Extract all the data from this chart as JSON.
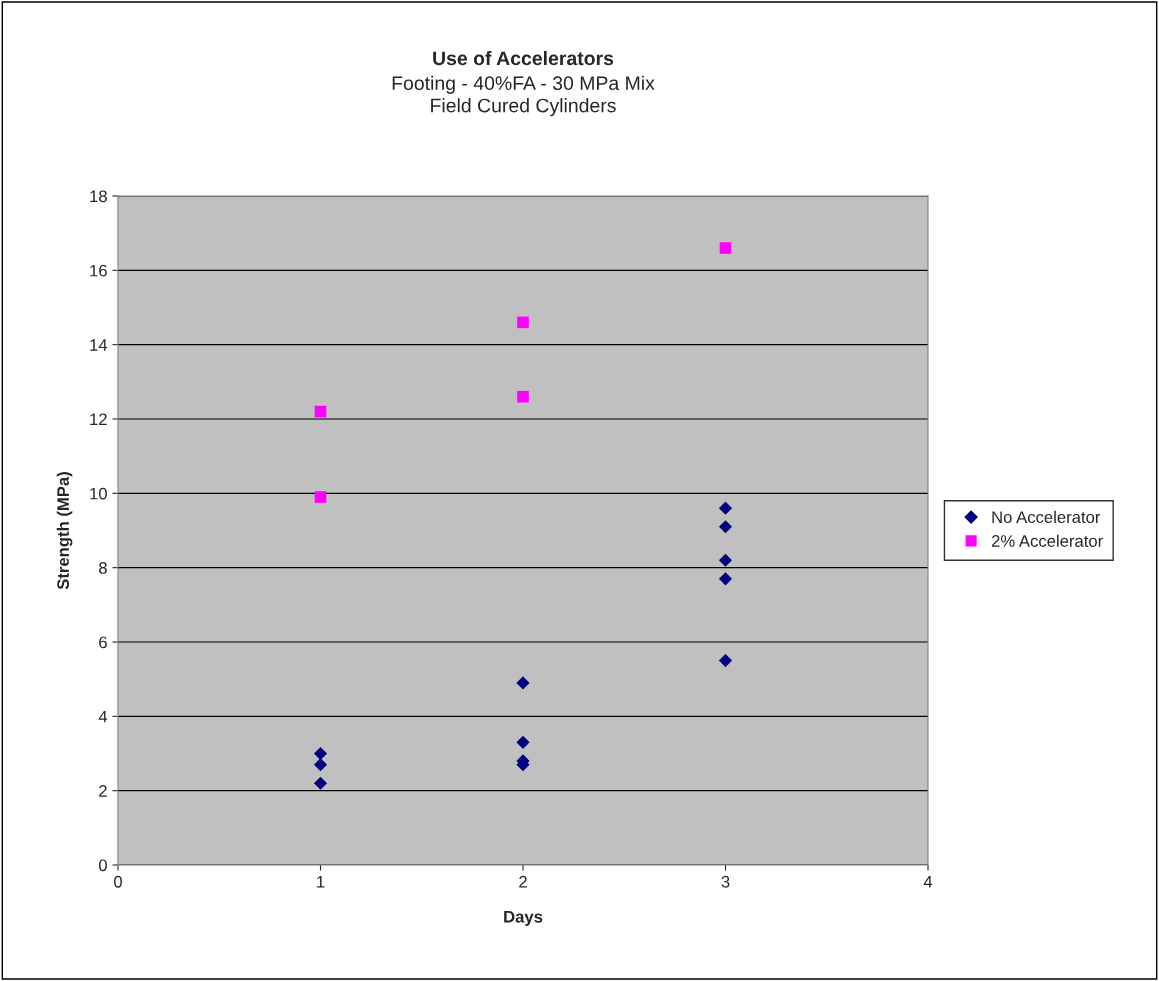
{
  "chart_data": {
    "type": "scatter",
    "title": "Use of Accelerators",
    "subtitle": "Footing - 40%FA - 30 MPa Mix\nField Cured Cylinders",
    "xlabel": "Days",
    "ylabel": "Strength (MPa)",
    "series": [
      {
        "name": "No Accelerator",
        "color": "#000080",
        "marker": "diamond",
        "x": [
          1,
          1,
          1,
          2,
          2,
          2,
          2,
          3,
          3,
          3,
          3,
          3
        ],
        "values": [
          3.0,
          2.7,
          2.2,
          4.9,
          3.3,
          2.8,
          2.7,
          9.6,
          9.1,
          8.2,
          7.7,
          5.5
        ]
      },
      {
        "name": "2% Accelerator",
        "color": "#ff00ff",
        "marker": "square",
        "x": [
          1,
          1,
          2,
          2,
          3
        ],
        "values": [
          12.2,
          9.9,
          14.6,
          12.6,
          16.6
        ]
      }
    ],
    "xlim": [
      0,
      4
    ],
    "xticks": [
      0,
      1,
      2,
      3,
      4
    ],
    "ylim": [
      0,
      18
    ],
    "yticks": [
      0,
      2,
      4,
      6,
      8,
      10,
      12,
      14,
      16,
      18
    ],
    "grid": "y",
    "legend": "right"
  }
}
